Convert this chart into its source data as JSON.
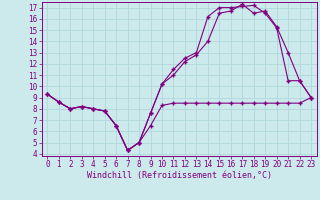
{
  "xlabel": "Windchill (Refroidissement éolien,°C)",
  "xlim": [
    -0.5,
    23.5
  ],
  "ylim": [
    3.8,
    17.5
  ],
  "xticks": [
    0,
    1,
    2,
    3,
    4,
    5,
    6,
    7,
    8,
    9,
    10,
    11,
    12,
    13,
    14,
    15,
    16,
    17,
    18,
    19,
    20,
    21,
    22,
    23
  ],
  "yticks": [
    4,
    5,
    6,
    7,
    8,
    9,
    10,
    11,
    12,
    13,
    14,
    15,
    16,
    17
  ],
  "bg_color": "#cce9ec",
  "line_color": "#800080",
  "grid_color": "#b0d8dc",
  "line1_x": [
    0,
    1,
    2,
    3,
    4,
    5,
    6,
    7,
    8,
    9,
    10,
    11,
    12,
    13,
    14,
    15,
    16,
    17,
    18,
    19,
    20,
    21,
    22,
    23
  ],
  "line1_y": [
    9.3,
    8.6,
    8.0,
    8.2,
    8.0,
    7.8,
    6.5,
    4.3,
    5.0,
    6.5,
    8.3,
    8.5,
    8.5,
    8.5,
    8.5,
    8.5,
    8.5,
    8.5,
    8.5,
    8.5,
    8.5,
    8.5,
    8.5,
    9.0
  ],
  "line2_x": [
    0,
    1,
    2,
    3,
    4,
    5,
    6,
    7,
    8,
    9,
    10,
    11,
    12,
    13,
    14,
    15,
    16,
    17,
    18,
    19,
    20,
    21,
    22,
    23
  ],
  "line2_y": [
    9.3,
    8.6,
    8.0,
    8.2,
    8.0,
    7.8,
    6.5,
    4.3,
    5.0,
    7.6,
    10.2,
    11.5,
    12.5,
    13.0,
    16.2,
    17.0,
    17.0,
    17.1,
    17.2,
    16.5,
    15.2,
    10.5,
    10.5,
    9.0
  ],
  "line3_x": [
    0,
    1,
    2,
    3,
    4,
    5,
    6,
    7,
    8,
    9,
    10,
    11,
    12,
    13,
    14,
    15,
    16,
    17,
    18,
    19,
    20,
    21,
    22,
    23
  ],
  "line3_y": [
    9.3,
    8.6,
    8.0,
    8.2,
    8.0,
    7.8,
    6.5,
    4.3,
    5.0,
    7.6,
    10.2,
    11.0,
    12.2,
    12.8,
    14.0,
    16.5,
    16.7,
    17.3,
    16.5,
    16.7,
    15.3,
    13.0,
    10.5,
    9.0
  ],
  "tick_fontsize": 5.5,
  "label_fontsize": 6.0,
  "marker": "+"
}
